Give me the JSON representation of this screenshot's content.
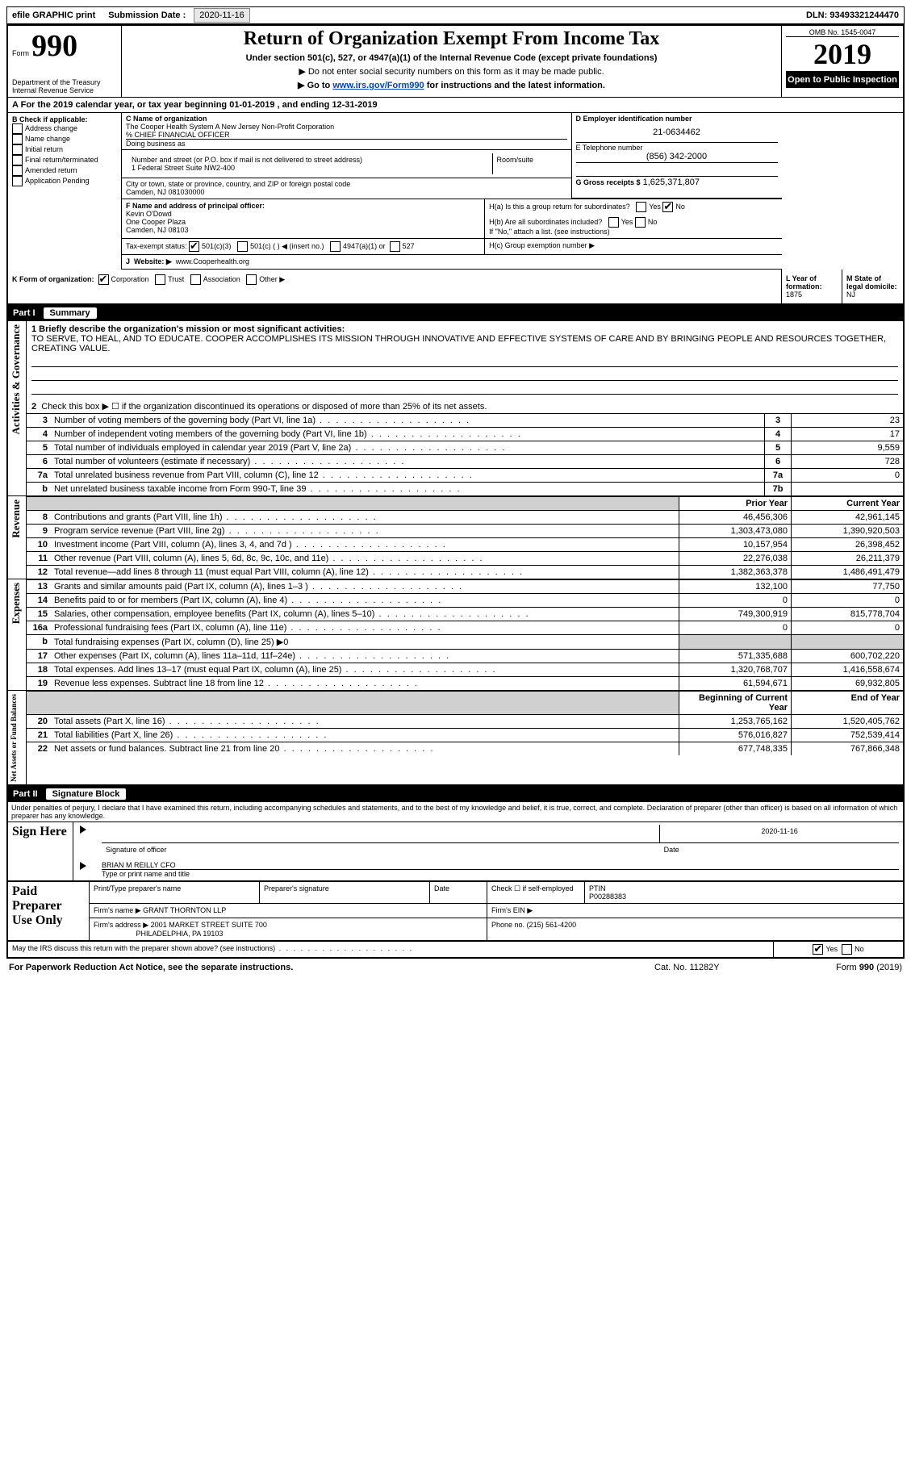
{
  "top": {
    "efile": "efile GRAPHIC print",
    "sub_label": "Submission Date :",
    "sub_date": "2020-11-16",
    "dln": "DLN: 93493321244470"
  },
  "header": {
    "form": "Form",
    "form_no": "990",
    "dept1": "Department of the Treasury",
    "dept2": "Internal Revenue Service",
    "title": "Return of Organization Exempt From Income Tax",
    "sub1": "Under section 501(c), 527, or 4947(a)(1) of the Internal Revenue Code (except private foundations)",
    "sub2": "▶ Do not enter social security numbers on this form as it may be made public.",
    "sub3a": "▶ Go to ",
    "sub3link": "www.irs.gov/Form990",
    "sub3b": " for instructions and the latest information.",
    "omb": "OMB No. 1545-0047",
    "year": "2019",
    "open": "Open to Public Inspection"
  },
  "periodA": "For the 2019 calendar year, or tax year beginning 01-01-2019   , and ending 12-31-2019",
  "boxB": {
    "title": "B Check if applicable:",
    "items": [
      "Address change",
      "Name change",
      "Initial return",
      "Final return/terminated",
      "Amended return",
      "Application Pending"
    ]
  },
  "boxC": {
    "label": "C Name of organization",
    "name1": "The Cooper Health System A New Jersey Non-Profit Corporation",
    "care": "% CHIEF FINANCIAL OFFICER",
    "dba_label": "Doing business as",
    "street_label": "Number and street (or P.O. box if mail is not delivered to street address)",
    "room_label": "Room/suite",
    "street": "1 Federal Street Suite NW2-400",
    "city_label": "City or town, state or province, country, and ZIP or foreign postal code",
    "city": "Camden, NJ  081030000"
  },
  "boxD": {
    "label": "D Employer identification number",
    "value": "21-0634462"
  },
  "boxE": {
    "label": "E Telephone number",
    "value": "(856) 342-2000"
  },
  "boxG": {
    "label": "G Gross receipts $",
    "value": "1,625,371,807"
  },
  "boxF": {
    "label": "F  Name and address of principal officer:",
    "name": "Kevin O'Dowd",
    "addr1": "One Cooper Plaza",
    "addr2": "Camden, NJ  08103"
  },
  "boxH": {
    "a": "H(a)  Is this a group return for subordinates?",
    "b": "H(b)  Are all subordinates included?",
    "note": "If \"No,\" attach a list. (see instructions)",
    "c": "H(c)  Group exemption number ▶"
  },
  "taxstatus": {
    "label": "Tax-exempt status:",
    "opts": [
      "501(c)(3)",
      "501(c) (   ) ◀ (insert no.)",
      "4947(a)(1) or",
      "527"
    ]
  },
  "boxJ": {
    "label": "Website: ▶",
    "value": "www.Cooperhealth.org"
  },
  "boxK": {
    "label": "K Form of organization:",
    "opts": [
      "Corporation",
      "Trust",
      "Association",
      "Other ▶"
    ]
  },
  "boxL": {
    "label": "L Year of formation:",
    "value": "1875"
  },
  "boxM": {
    "label": "M State of legal domicile:",
    "value": "NJ"
  },
  "part1": {
    "num": "Part I",
    "title": "Summary"
  },
  "mission": {
    "label": "1   Briefly describe the organization's mission or most significant activities:",
    "text": "TO SERVE, TO HEAL, AND TO EDUCATE. COOPER ACCOMPLISHES ITS MISSION THROUGH INNOVATIVE AND EFFECTIVE SYSTEMS OF CARE AND BY BRINGING PEOPLE AND RESOURCES TOGETHER, CREATING VALUE."
  },
  "line2": "Check this box ▶ ☐  if the organization discontinued its operations or disposed of more than 25% of its net assets.",
  "sections": {
    "gov": "Activities & Governance",
    "rev": "Revenue",
    "exp": "Expenses",
    "net": "Net Assets or Fund Balances"
  },
  "col_headers": {
    "prior": "Prior Year",
    "curr": "Current Year",
    "beg": "Beginning of Current Year",
    "end": "End of Year"
  },
  "gov_lines": [
    {
      "n": "3",
      "d": "Number of voting members of the governing body (Part VI, line 1a)",
      "box": "3",
      "v": "23"
    },
    {
      "n": "4",
      "d": "Number of independent voting members of the governing body (Part VI, line 1b)",
      "box": "4",
      "v": "17"
    },
    {
      "n": "5",
      "d": "Total number of individuals employed in calendar year 2019 (Part V, line 2a)",
      "box": "5",
      "v": "9,559"
    },
    {
      "n": "6",
      "d": "Total number of volunteers (estimate if necessary)",
      "box": "6",
      "v": "728"
    },
    {
      "n": "7a",
      "d": "Total unrelated business revenue from Part VIII, column (C), line 12",
      "box": "7a",
      "v": "0"
    },
    {
      "n": "b",
      "d": "Net unrelated business taxable income from Form 990-T, line 39",
      "box": "7b",
      "v": ""
    }
  ],
  "rev_lines": [
    {
      "n": "8",
      "d": "Contributions and grants (Part VIII, line 1h)",
      "p": "46,456,306",
      "c": "42,961,145"
    },
    {
      "n": "9",
      "d": "Program service revenue (Part VIII, line 2g)",
      "p": "1,303,473,080",
      "c": "1,390,920,503"
    },
    {
      "n": "10",
      "d": "Investment income (Part VIII, column (A), lines 3, 4, and 7d )",
      "p": "10,157,954",
      "c": "26,398,452"
    },
    {
      "n": "11",
      "d": "Other revenue (Part VIII, column (A), lines 5, 6d, 8c, 9c, 10c, and 11e)",
      "p": "22,276,038",
      "c": "26,211,379"
    },
    {
      "n": "12",
      "d": "Total revenue—add lines 8 through 11 (must equal Part VIII, column (A), line 12)",
      "p": "1,382,363,378",
      "c": "1,486,491,479"
    }
  ],
  "exp_lines": [
    {
      "n": "13",
      "d": "Grants and similar amounts paid (Part IX, column (A), lines 1–3 )",
      "p": "132,100",
      "c": "77,750"
    },
    {
      "n": "14",
      "d": "Benefits paid to or for members (Part IX, column (A), line 4)",
      "p": "0",
      "c": "0"
    },
    {
      "n": "15",
      "d": "Salaries, other compensation, employee benefits (Part IX, column (A), lines 5–10)",
      "p": "749,300,919",
      "c": "815,778,704"
    },
    {
      "n": "16a",
      "d": "Professional fundraising fees (Part IX, column (A), line 11e)",
      "p": "0",
      "c": "0"
    },
    {
      "n": "b",
      "d": "Total fundraising expenses (Part IX, column (D), line 25) ▶0",
      "shade": true
    },
    {
      "n": "17",
      "d": "Other expenses (Part IX, column (A), lines 11a–11d, 11f–24e)",
      "p": "571,335,688",
      "c": "600,702,220"
    },
    {
      "n": "18",
      "d": "Total expenses. Add lines 13–17 (must equal Part IX, column (A), line 25)",
      "p": "1,320,768,707",
      "c": "1,416,558,674"
    },
    {
      "n": "19",
      "d": "Revenue less expenses. Subtract line 18 from line 12",
      "p": "61,594,671",
      "c": "69,932,805"
    }
  ],
  "net_lines": [
    {
      "n": "20",
      "d": "Total assets (Part X, line 16)",
      "p": "1,253,765,162",
      "c": "1,520,405,762"
    },
    {
      "n": "21",
      "d": "Total liabilities (Part X, line 26)",
      "p": "576,016,827",
      "c": "752,539,414"
    },
    {
      "n": "22",
      "d": "Net assets or fund balances. Subtract line 21 from line 20",
      "p": "677,748,335",
      "c": "767,866,348"
    }
  ],
  "part2": {
    "num": "Part II",
    "title": "Signature Block"
  },
  "penalty": "Under penalties of perjury, I declare that I have examined this return, including accompanying schedules and statements, and to the best of my knowledge and belief, it is true, correct, and complete. Declaration of preparer (other than officer) is based on all information of which preparer has any knowledge.",
  "sign": {
    "here": "Sign Here",
    "sig_officer": "Signature of officer",
    "date_label": "Date",
    "date": "2020-11-16",
    "typed": "BRIAN M REILLY CFO",
    "typed_label": "Type or print name and title"
  },
  "paid": {
    "title": "Paid Preparer Use Only",
    "h1": "Print/Type preparer's name",
    "h2": "Preparer's signature",
    "h3": "Date",
    "check": "Check ☐ if self-employed",
    "ptin_label": "PTIN",
    "ptin": "P00288383",
    "firm_label": "Firm's name    ▶",
    "firm": "GRANT THORNTON LLP",
    "ein_label": "Firm's EIN ▶",
    "addr_label": "Firm's address ▶",
    "addr1": "2001 MARKET STREET SUITE 700",
    "addr2": "PHILADELPHIA, PA  19103",
    "phone_label": "Phone no.",
    "phone": "(215) 561-4200"
  },
  "discuss": "May the IRS discuss this return with the preparer shown above? (see instructions)",
  "footer": {
    "l": "For Paperwork Reduction Act Notice, see the separate instructions.",
    "m": "Cat. No. 11282Y",
    "r": "Form 990 (2019)"
  }
}
